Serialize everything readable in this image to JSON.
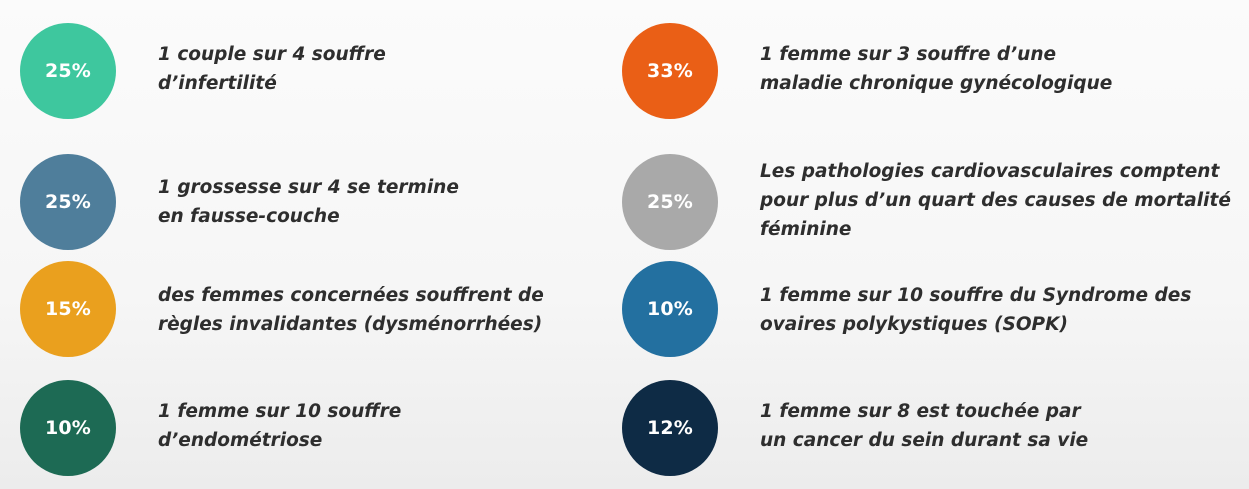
{
  "stats": {
    "left": [
      {
        "percent": "25%",
        "color": "#3ec79e",
        "line1": "1 couple sur 4 souffre",
        "line2": "d’infertilité"
      },
      {
        "percent": "25%",
        "color": "#4f7e9b",
        "line1": "1 grossesse sur 4 se termine",
        "line2": "en fausse-couche"
      },
      {
        "percent": "15%",
        "color": "#eaa01e",
        "line1": "des femmes concernées souffrent de",
        "line2": "règles invalidantes (dysménorrhées)"
      },
      {
        "percent": "10%",
        "color": "#1d6a54",
        "line1": "1 femme sur 10 souffre",
        "line2": "d’endométriose"
      }
    ],
    "right": [
      {
        "percent": "33%",
        "color": "#ea5f16",
        "line1": "1 femme sur 3 souffre d’une",
        "line2": "maladie chronique gynécologique"
      },
      {
        "percent": "25%",
        "color": "#a9a9a9",
        "line1": "Les pathologies cardiovasculaires comptent",
        "line2": "pour plus d’un quart des causes de mortalité",
        "line3": "féminine"
      },
      {
        "percent": "10%",
        "color": "#2370a0",
        "line1": "1 femme sur 10 souffre du Syndrome des",
        "line2": "ovaires polykystiques (SOPK)"
      },
      {
        "percent": "12%",
        "color": "#0e2b45",
        "line1": "1 femme sur 8 est touchée par",
        "line2": "un cancer du sein durant sa vie"
      }
    ]
  }
}
